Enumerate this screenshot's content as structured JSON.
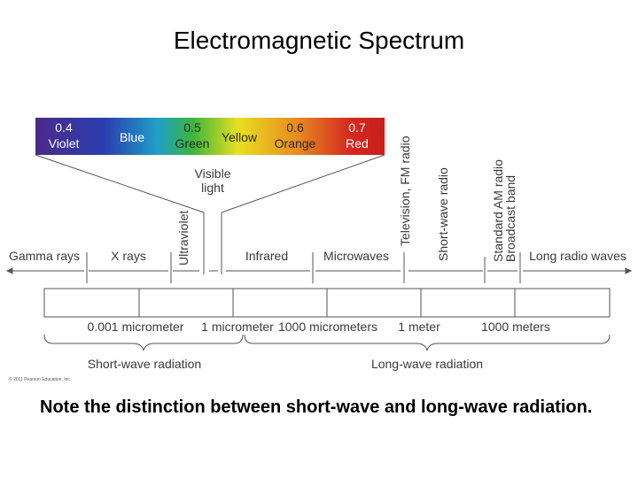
{
  "title": "Electromagnetic Spectrum",
  "note": "Note the distinction between short-wave and long-wave radiation.",
  "colors": {
    "violet": "#4b2a8a",
    "blue": "#2a3fb0",
    "cyan": "#1fa0c8",
    "green": "#3db53a",
    "yellow": "#e8e020",
    "orange": "#e88a20",
    "red": "#d42a20",
    "line": "#555555"
  },
  "visible_bar": {
    "bands": [
      {
        "wavelength": "0.4",
        "color": "Violet"
      },
      {
        "wavelength": "",
        "color": "Blue"
      },
      {
        "wavelength": "0.5",
        "color": "Green"
      },
      {
        "wavelength": "",
        "color": "Yellow"
      },
      {
        "wavelength": "0.6",
        "color": "Orange"
      },
      {
        "wavelength": "0.7",
        "color": "Red"
      }
    ]
  },
  "visible_label": [
    "Visible",
    "light"
  ],
  "vertical_labels": {
    "ultraviolet": "Ultraviolet",
    "television": [
      "Television, FM radio"
    ],
    "shortwave": "Short-wave radio",
    "am": [
      "Standard AM radio",
      "Broadcast band"
    ]
  },
  "regions": [
    "Gamma rays",
    "X rays",
    "Infrared",
    "Microwaves",
    "Long radio waves"
  ],
  "scale": [
    "0.001 micrometer",
    "1 micrometer",
    "1000 micrometers",
    "1 meter",
    "1000 meters"
  ],
  "radiation": {
    "short": "Short-wave radiation",
    "long": "Long-wave radiation"
  },
  "copyright": "© 2011 Pearson Education, Inc."
}
